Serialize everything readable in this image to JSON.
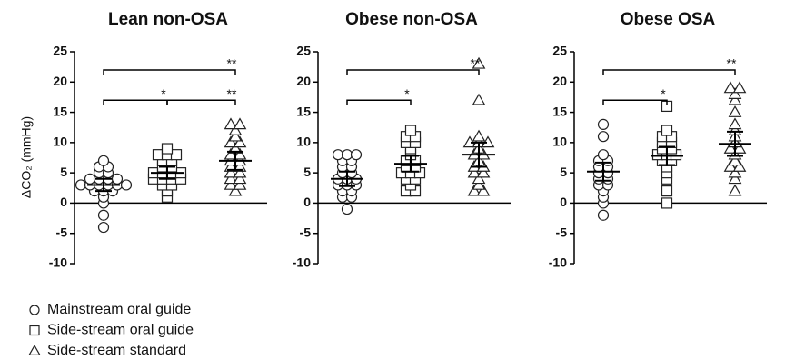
{
  "legend": [
    {
      "name": "Mainstream oral guide",
      "marker": "circle"
    },
    {
      "name": "Side-stream oral guide",
      "marker": "square"
    },
    {
      "name": "Side-stream standard",
      "marker": "triangle"
    }
  ],
  "chart_data": [
    {
      "type": "strip",
      "title": "Lean non-OSA",
      "y_label": "ΔCO₂ (mmHg)",
      "categories": [
        null,
        null,
        null
      ],
      "ylim": [
        -10,
        25
      ],
      "yticks": [
        -10,
        -5,
        0,
        5,
        10,
        15,
        20,
        25
      ],
      "series": [
        {
          "marker": "circle",
          "values": [
            0,
            -4,
            -2,
            1,
            2,
            2,
            2,
            3,
            3,
            3,
            3,
            3,
            3,
            4,
            4,
            4,
            4,
            5,
            5,
            6,
            6,
            7
          ],
          "mean": 3,
          "sem": 1
        },
        {
          "marker": "square",
          "values": [
            1,
            2,
            3,
            3,
            4,
            4,
            4,
            4,
            5,
            5,
            5,
            5,
            6,
            6,
            7,
            7,
            8,
            8,
            8,
            9
          ],
          "mean": 5,
          "sem": 1
        },
        {
          "marker": "triangle",
          "values": [
            2,
            3,
            3,
            4,
            4,
            5,
            5,
            6,
            6,
            7,
            7,
            8,
            8,
            9,
            10,
            10,
            11,
            12,
            13,
            13
          ],
          "mean": 7,
          "sem": 1.5
        }
      ],
      "brackets": [
        {
          "from": 0,
          "to": 2,
          "y": 22,
          "label": "**"
        },
        {
          "from": 0,
          "to": 1,
          "y": 17,
          "label": "*"
        },
        {
          "from": 1,
          "to": 2,
          "y": 17,
          "label": "**"
        }
      ]
    },
    {
      "type": "strip",
      "title": "Obese non-OSA",
      "categories": [
        null,
        null,
        null
      ],
      "ylim": [
        -10,
        25
      ],
      "yticks": [
        -10,
        -5,
        0,
        5,
        10,
        15,
        20,
        25
      ],
      "series": [
        {
          "marker": "circle",
          "values": [
            -1,
            1,
            1,
            2,
            2,
            3,
            3,
            3,
            4,
            4,
            4,
            5,
            5,
            6,
            6,
            7,
            7,
            8,
            8,
            8
          ],
          "mean": 4,
          "sem": 1.2
        },
        {
          "marker": "square",
          "values": [
            2,
            2,
            3,
            4,
            4,
            5,
            5,
            5,
            6,
            6,
            7,
            7,
            8,
            9,
            10,
            10,
            11,
            11,
            12
          ],
          "mean": 6.5,
          "sem": 1.3
        },
        {
          "marker": "triangle",
          "values": [
            2,
            2,
            3,
            4,
            5,
            5,
            6,
            6,
            7,
            8,
            8,
            9,
            10,
            10,
            10,
            11,
            17,
            23
          ],
          "mean": 8,
          "sem": 2
        }
      ],
      "brackets": [
        {
          "from": 0,
          "to": 2,
          "y": 22,
          "label": "**"
        },
        {
          "from": 0,
          "to": 1,
          "y": 17,
          "label": "*"
        }
      ]
    },
    {
      "type": "strip",
      "title": "Obese OSA",
      "categories": [
        null,
        null,
        null
      ],
      "ylim": [
        -10,
        25
      ],
      "yticks": [
        -10,
        -5,
        0,
        5,
        10,
        15,
        20,
        25
      ],
      "series": [
        {
          "marker": "circle",
          "values": [
            -2,
            0,
            1,
            2,
            3,
            3,
            4,
            4,
            5,
            5,
            6,
            6,
            7,
            7,
            8,
            11,
            13
          ],
          "mean": 5.2,
          "sem": 1.5
        },
        {
          "marker": "square",
          "values": [
            0,
            2,
            4,
            5,
            6,
            7,
            7,
            8,
            8,
            8,
            9,
            9,
            10,
            10,
            11,
            11,
            12,
            16
          ],
          "mean": 7.8,
          "sem": 1.5
        },
        {
          "marker": "triangle",
          "values": [
            2,
            4,
            5,
            6,
            6,
            7,
            8,
            9,
            9,
            10,
            11,
            12,
            13,
            15,
            17,
            18,
            19,
            19
          ],
          "mean": 9.8,
          "sem": 2
        }
      ],
      "brackets": [
        {
          "from": 0,
          "to": 2,
          "y": 22,
          "label": "**"
        },
        {
          "from": 0,
          "to": 1,
          "y": 17,
          "label": "*"
        }
      ]
    }
  ]
}
